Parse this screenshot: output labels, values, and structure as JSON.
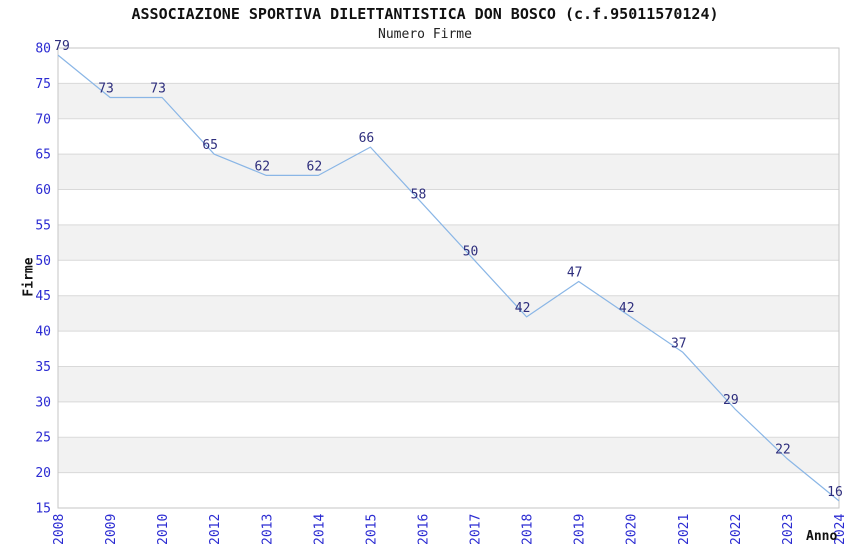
{
  "chart_data": {
    "type": "line",
    "title": "ASSOCIAZIONE SPORTIVA DILETTANTISTICA DON BOSCO (c.f.95011570124)",
    "subtitle": "Numero Firme",
    "xlabel": "Anno",
    "ylabel": "Firme",
    "categories": [
      "2008",
      "2009",
      "2010",
      "2012",
      "2013",
      "2014",
      "2015",
      "2016",
      "2017",
      "2018",
      "2019",
      "2020",
      "2021",
      "2022",
      "2023",
      "2024"
    ],
    "values": [
      79,
      73,
      73,
      65,
      62,
      62,
      66,
      58,
      50,
      42,
      47,
      42,
      37,
      29,
      22,
      16
    ],
    "ylim": [
      15,
      80
    ],
    "ytick_step": 5,
    "yticks": [
      80,
      75,
      70,
      65,
      60,
      55,
      50,
      45,
      40,
      35,
      30,
      25,
      20,
      15
    ],
    "grid": true,
    "legend": "none",
    "colors": {
      "line": "#8ab6e6",
      "data_label": "#2e2e7d",
      "tick_label": "#2b2bd2",
      "band_fill": "#f2f2f2",
      "gridline": "#d9d9d9",
      "plot_border": "#c6c6c6",
      "title_text": "#111111",
      "background": "#ffffff"
    }
  }
}
